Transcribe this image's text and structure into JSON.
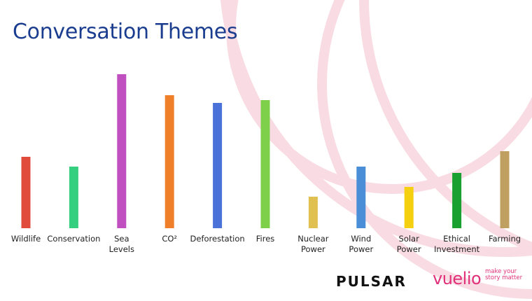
{
  "chart_data": {
    "type": "bar",
    "title": "Conversation Themes",
    "categories": [
      "Wildlife",
      "Conservation",
      "Sea Levels",
      "CO²",
      "Deforestation",
      "Fires",
      "Nuclear Power",
      "Wind Power",
      "Solar Power",
      "Ethical Investment",
      "Farming"
    ],
    "values": [
      102,
      88,
      220,
      190,
      179,
      183,
      45,
      88,
      59,
      79,
      110
    ],
    "colors": [
      "#e14b3b",
      "#35d07f",
      "#c04fc0",
      "#f07f2a",
      "#4a72d8",
      "#7ed04a",
      "#e0c050",
      "#4a8ed8",
      "#f5d010",
      "#1aa030",
      "#c0a060"
    ]
  },
  "logos": {
    "pulsar": "PULSAR",
    "vuelio": "vuelio",
    "tagline": "make your story matter"
  }
}
